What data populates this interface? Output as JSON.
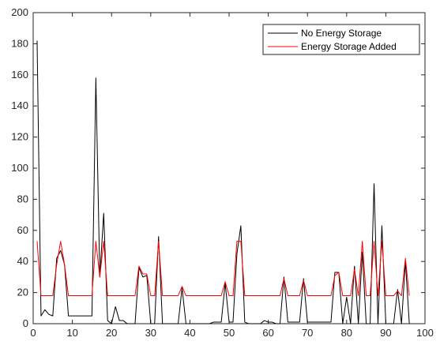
{
  "chart_data": {
    "type": "line",
    "title": "",
    "xlabel": "",
    "ylabel": "",
    "xlim": [
      0,
      100
    ],
    "ylim": [
      0,
      200
    ],
    "x_ticks": [
      0,
      10,
      20,
      30,
      40,
      50,
      60,
      70,
      80,
      90,
      100
    ],
    "y_ticks": [
      0,
      20,
      40,
      60,
      80,
      100,
      120,
      140,
      160,
      180,
      200
    ],
    "grid": false,
    "legend_position": "top-right",
    "series": [
      {
        "name": "No Energy Storage",
        "color": "#000000",
        "x": [
          1,
          2,
          3,
          4,
          5,
          6,
          7,
          8,
          9,
          10,
          11,
          12,
          13,
          14,
          15,
          16,
          17,
          18,
          19,
          20,
          21,
          22,
          23,
          24,
          25,
          26,
          27,
          28,
          29,
          30,
          31,
          32,
          33,
          34,
          35,
          36,
          37,
          38,
          39,
          40,
          41,
          42,
          43,
          44,
          45,
          46,
          47,
          48,
          49,
          50,
          51,
          52,
          53,
          54,
          55,
          56,
          57,
          58,
          59,
          60,
          61,
          62,
          63,
          64,
          65,
          66,
          67,
          68,
          69,
          70,
          71,
          72,
          73,
          74,
          75,
          76,
          77,
          78,
          79,
          80,
          81,
          82,
          83,
          84,
          85,
          86,
          87,
          88,
          89,
          90,
          91,
          92,
          93,
          94,
          95,
          96
        ],
        "values": [
          182,
          5,
          9,
          6,
          5,
          42,
          47,
          38,
          5,
          5,
          5,
          5,
          5,
          5,
          5,
          158,
          30,
          71,
          2,
          0,
          11,
          2,
          2,
          0,
          0,
          0,
          36,
          30,
          31,
          0,
          0,
          56,
          0,
          0,
          0,
          0,
          0,
          23,
          0,
          0,
          0,
          0,
          0,
          0,
          0,
          1,
          1,
          1,
          26,
          1,
          1,
          45,
          63,
          1,
          0,
          0,
          0,
          0,
          2,
          1,
          1,
          0,
          0,
          30,
          1,
          1,
          1,
          1,
          29,
          1,
          1,
          1,
          1,
          1,
          1,
          1,
          33,
          33,
          0,
          17,
          0,
          37,
          0,
          46,
          0,
          0,
          90,
          0,
          63,
          0,
          0,
          0,
          22,
          0,
          40,
          0
        ]
      },
      {
        "name": "Energy Storage Added",
        "color": "#ff0000",
        "x": [
          1,
          2,
          3,
          4,
          5,
          6,
          7,
          8,
          9,
          10,
          11,
          12,
          13,
          14,
          15,
          16,
          17,
          18,
          19,
          20,
          21,
          22,
          23,
          24,
          25,
          26,
          27,
          28,
          29,
          30,
          31,
          32,
          33,
          34,
          35,
          36,
          37,
          38,
          39,
          40,
          41,
          42,
          43,
          44,
          45,
          46,
          47,
          48,
          49,
          50,
          51,
          52,
          53,
          54,
          55,
          56,
          57,
          58,
          59,
          60,
          61,
          62,
          63,
          64,
          65,
          66,
          67,
          68,
          69,
          70,
          71,
          72,
          73,
          74,
          75,
          76,
          77,
          78,
          79,
          80,
          81,
          82,
          83,
          84,
          85,
          86,
          87,
          88,
          89,
          90,
          91,
          92,
          93,
          94,
          95,
          96
        ],
        "values": [
          53,
          18,
          18,
          18,
          18,
          38,
          53,
          38,
          18,
          18,
          18,
          18,
          18,
          18,
          18,
          53,
          30,
          53,
          18,
          18,
          18,
          18,
          18,
          18,
          18,
          18,
          37,
          32,
          32,
          18,
          18,
          53,
          18,
          18,
          18,
          18,
          18,
          24,
          18,
          18,
          18,
          18,
          18,
          18,
          18,
          18,
          18,
          18,
          27,
          18,
          18,
          53,
          53,
          18,
          18,
          18,
          18,
          18,
          18,
          18,
          18,
          18,
          18,
          29,
          18,
          18,
          18,
          18,
          28,
          18,
          18,
          18,
          18,
          18,
          18,
          18,
          31,
          33,
          18,
          18,
          18,
          35,
          18,
          53,
          18,
          18,
          53,
          18,
          53,
          18,
          18,
          18,
          21,
          18,
          42,
          18
        ]
      }
    ]
  }
}
